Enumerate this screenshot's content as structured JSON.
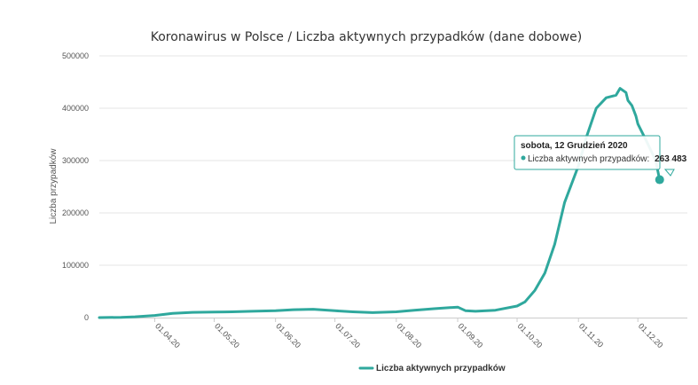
{
  "chart_data": {
    "type": "line",
    "title": "Koronawirus w Polsce / Liczba aktywnych przypadków (dane dobowe)",
    "xlabel": "",
    "ylabel": "Liczba przypadków",
    "ylim": [
      0,
      500000
    ],
    "yticks": [
      "0",
      "100000",
      "200000",
      "300000",
      "400000",
      "500000"
    ],
    "xticks": [
      "01.04.20",
      "01.05.20",
      "01.06.20",
      "01.07.20",
      "01.08.20",
      "01.09.20",
      "01.10.20",
      "01.11.20",
      "01.12.20"
    ],
    "grid": true,
    "legend_position": "bottom",
    "series": [
      {
        "name": "Liczba aktywnych przypadków",
        "color": "#2fa89d",
        "x": [
          "04.03.20",
          "15.03.20",
          "22.03.20",
          "01.04.20",
          "10.04.20",
          "20.04.20",
          "01.05.20",
          "10.05.20",
          "20.05.20",
          "01.06.20",
          "10.06.20",
          "20.06.20",
          "01.07.20",
          "10.07.20",
          "20.07.20",
          "01.08.20",
          "10.08.20",
          "20.08.20",
          "01.09.20",
          "05.09.20",
          "10.09.20",
          "20.09.20",
          "01.10.20",
          "05.10.20",
          "10.10.20",
          "15.10.20",
          "20.10.20",
          "25.10.20",
          "01.11.20",
          "05.11.20",
          "10.11.20",
          "15.11.20",
          "20.11.20",
          "22.11.20",
          "25.11.20",
          "26.11.20",
          "28.11.20",
          "30.11.20",
          "01.12.20",
          "05.12.20",
          "10.12.20",
          "12.12.20"
        ],
        "values": [
          0,
          500,
          1500,
          4000,
          8000,
          10000,
          10500,
          11000,
          12000,
          13000,
          15000,
          16000,
          13000,
          11000,
          9500,
          11000,
          14000,
          17000,
          20000,
          13000,
          12000,
          14000,
          22000,
          30000,
          52000,
          85000,
          140000,
          220000,
          290000,
          345000,
          400000,
          420000,
          425000,
          438000,
          430000,
          415000,
          405000,
          385000,
          370000,
          340000,
          300000,
          263483
        ]
      }
    ],
    "tooltip": {
      "date": "sobota, 12 Grudzień 2020",
      "series_label": "Liczba aktywnych przypadków:",
      "value": "263 483"
    }
  }
}
